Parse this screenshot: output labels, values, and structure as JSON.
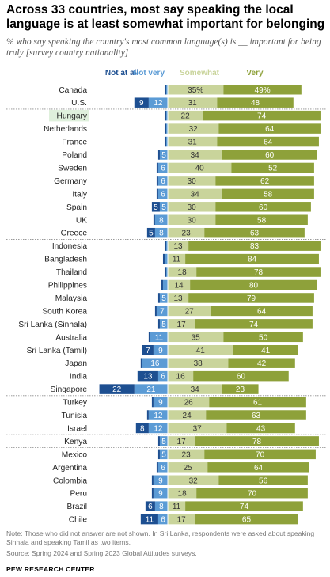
{
  "title": "Across 33 countries, most say speaking the local language is at least somewhat important for belonging",
  "subtitle": "% who say speaking the country's most common language(s) is __ important for being truly [survey country nationality]",
  "note": "Note: Those who did not answer are not shown. In Sri Lanka, respondents were asked about speaking Sinhala and speaking Tamil as two items.",
  "source": "Source: Spring 2024 and Spring 2023 Global Attitudes surveys.",
  "org": "PEW RESEARCH CENTER",
  "colors": {
    "not_at_all": "#1d4f91",
    "not_very": "#5b9bd5",
    "somewhat": "#c9d49b",
    "very": "#8ea13a",
    "highlight": "#dff0dc"
  },
  "chart_data": {
    "type": "bar",
    "subtype": "diverging-stacked",
    "series": [
      {
        "name": "Not at all",
        "values": [
          1,
          9,
          1,
          1,
          1,
          1,
          1,
          1,
          1,
          5,
          1,
          5,
          1,
          1,
          1,
          1,
          1,
          1,
          1,
          1,
          7,
          1,
          13,
          22,
          1,
          1,
          8,
          1,
          1,
          1,
          1,
          1,
          6,
          11
        ]
      },
      {
        "name": "Not very",
        "values": [
          1,
          12,
          1,
          1,
          1,
          5,
          6,
          6,
          6,
          5,
          8,
          8,
          1,
          2,
          1,
          3,
          5,
          7,
          5,
          11,
          9,
          16,
          6,
          21,
          9,
          12,
          12,
          5,
          5,
          6,
          9,
          9,
          8,
          6
        ]
      },
      {
        "name": "Somewhat",
        "values": [
          35,
          31,
          22,
          32,
          31,
          34,
          40,
          30,
          34,
          30,
          30,
          23,
          13,
          11,
          18,
          14,
          13,
          27,
          17,
          35,
          41,
          38,
          16,
          34,
          26,
          24,
          37,
          17,
          23,
          25,
          32,
          18,
          11,
          17
        ]
      },
      {
        "name": "Very",
        "values": [
          49,
          48,
          74,
          64,
          64,
          60,
          52,
          62,
          58,
          60,
          58,
          63,
          83,
          84,
          78,
          80,
          79,
          64,
          74,
          50,
          41,
          42,
          60,
          23,
          61,
          63,
          43,
          78,
          70,
          64,
          56,
          70,
          74,
          65
        ]
      }
    ],
    "categories": [
      "Canada",
      "U.S.",
      "Hungary",
      "Netherlands",
      "France",
      "Poland",
      "Sweden",
      "Germany",
      "Italy",
      "Spain",
      "UK",
      "Greece",
      "Indonesia",
      "Bangladesh",
      "Thailand",
      "Philippines",
      "Malaysia",
      "South Korea",
      "Sri Lanka (Sinhala)",
      "Australia",
      "Sri Lanka (Tamil)",
      "Japan",
      "India",
      "Singapore",
      "Turkey",
      "Tunisia",
      "Israel",
      "Kenya",
      "Mexico",
      "Argentina",
      "Colombia",
      "Peru",
      "Brazil",
      "Chile"
    ],
    "labels": {
      "not_at_all": [
        "",
        "9",
        "",
        "",
        "",
        "",
        "",
        "",
        "",
        "5",
        "",
        "5",
        "",
        "",
        "",
        "",
        "",
        "",
        "",
        "",
        "7",
        "",
        "13",
        "22",
        "",
        "",
        "8",
        "",
        "",
        "",
        "",
        "",
        "6",
        "11"
      ],
      "not_very": [
        "",
        "12",
        "",
        "",
        "",
        "5",
        "6",
        "6",
        "6",
        "5",
        "8",
        "8",
        "",
        "",
        "",
        "",
        "5",
        "7",
        "5",
        "11",
        "9",
        "16",
        "6",
        "21",
        "9",
        "12",
        "12",
        "5",
        "5",
        "6",
        "9",
        "9",
        "8",
        "6"
      ],
      "somewhat": [
        "35%",
        "31",
        "22",
        "32",
        "31",
        "34",
        "40",
        "30",
        "34",
        "30",
        "30",
        "23",
        "13",
        "11",
        "18",
        "14",
        "13",
        "27",
        "17",
        "35",
        "41",
        "38",
        "16",
        "34",
        "26",
        "24",
        "37",
        "17",
        "23",
        "25",
        "32",
        "18",
        "11",
        "17"
      ],
      "very": [
        "49%",
        "48",
        "74",
        "64",
        "64",
        "60",
        "52",
        "62",
        "58",
        "60",
        "58",
        "63",
        "83",
        "84",
        "78",
        "80",
        "79",
        "64",
        "74",
        "50",
        "41",
        "42",
        "60",
        "23",
        "61",
        "63",
        "43",
        "78",
        "70",
        "64",
        "56",
        "70",
        "74",
        "65"
      ]
    },
    "highlighted_category": "Hungary",
    "group_ends": [
      1,
      11,
      23,
      26,
      27
    ],
    "xlim": [
      -45,
      90
    ],
    "grid": false,
    "legend_position": "top"
  }
}
